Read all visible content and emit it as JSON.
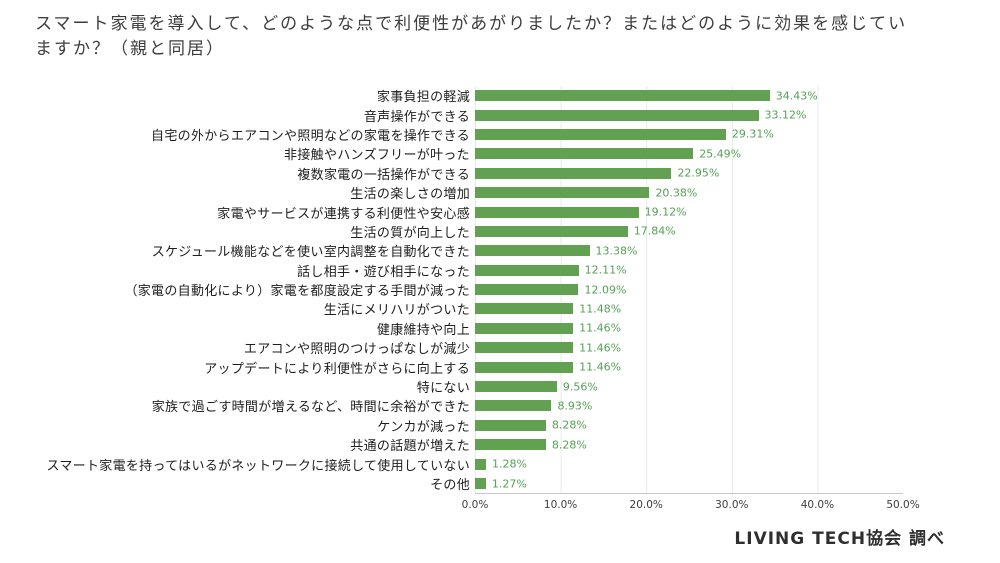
{
  "page": {
    "title": "スマート家電を導入して、どのような点で利便性があがりましたか？またはどのように効果を感じていますか？（親と同居）",
    "source": "LIVING TECH協会 調べ"
  },
  "chart_data": {
    "type": "bar",
    "orientation": "horizontal",
    "title": "スマート家電を導入して、どのような点で利便性があがりましたか？またはどのように効果を感じていますか？（親と同居）",
    "categories": [
      "家事負担の軽減",
      "音声操作ができる",
      "自宅の外からエアコンや照明などの家電を操作できる",
      "非接触やハンズフリーが叶った",
      "複数家電の一括操作ができる",
      "生活の楽しさの増加",
      "家電やサービスが連携する利便性や安心感",
      "生活の質が向上した",
      "スケジュール機能などを使い室内調整を自動化できた",
      "話し相手・遊び相手になった",
      "（家電の自動化により）家電を都度設定する手間が減った",
      "生活にメリハリがついた",
      "健康維持や向上",
      "エアコンや照明のつけっぱなしが減少",
      "アップデートにより利便性がさらに向上する",
      "特にない",
      "家族で過ごす時間が増えるなど、時間に余裕ができた",
      "ケンカが減った",
      "共通の話題が増えた",
      "スマート家電を持ってはいるがネットワークに接続して使用していない",
      "その他"
    ],
    "values": [
      34.43,
      33.12,
      29.31,
      25.49,
      22.95,
      20.38,
      19.12,
      17.84,
      13.38,
      12.11,
      12.09,
      11.48,
      11.46,
      11.46,
      11.46,
      9.56,
      8.93,
      8.28,
      8.28,
      1.28,
      1.27
    ],
    "value_labels": [
      "34.43%",
      "33.12%",
      "29.31%",
      "25.49%",
      "22.95%",
      "20.38%",
      "19.12%",
      "17.84%",
      "13.38%",
      "12.11%",
      "12.09%",
      "11.48%",
      "11.46%",
      "11.46%",
      "11.46%",
      "9.56%",
      "8.93%",
      "8.28%",
      "8.28%",
      "1.28%",
      "1.27%"
    ],
    "xlim": [
      0,
      50
    ],
    "x_ticks": [
      "0.0%",
      "10.0%",
      "20.0%",
      "30.0%",
      "40.0%",
      "50.0%"
    ],
    "grid": true,
    "legend": "none",
    "bar_color": "#61a151",
    "value_label_color": "#55a155",
    "source": "LIVING TECH協会 調べ"
  }
}
